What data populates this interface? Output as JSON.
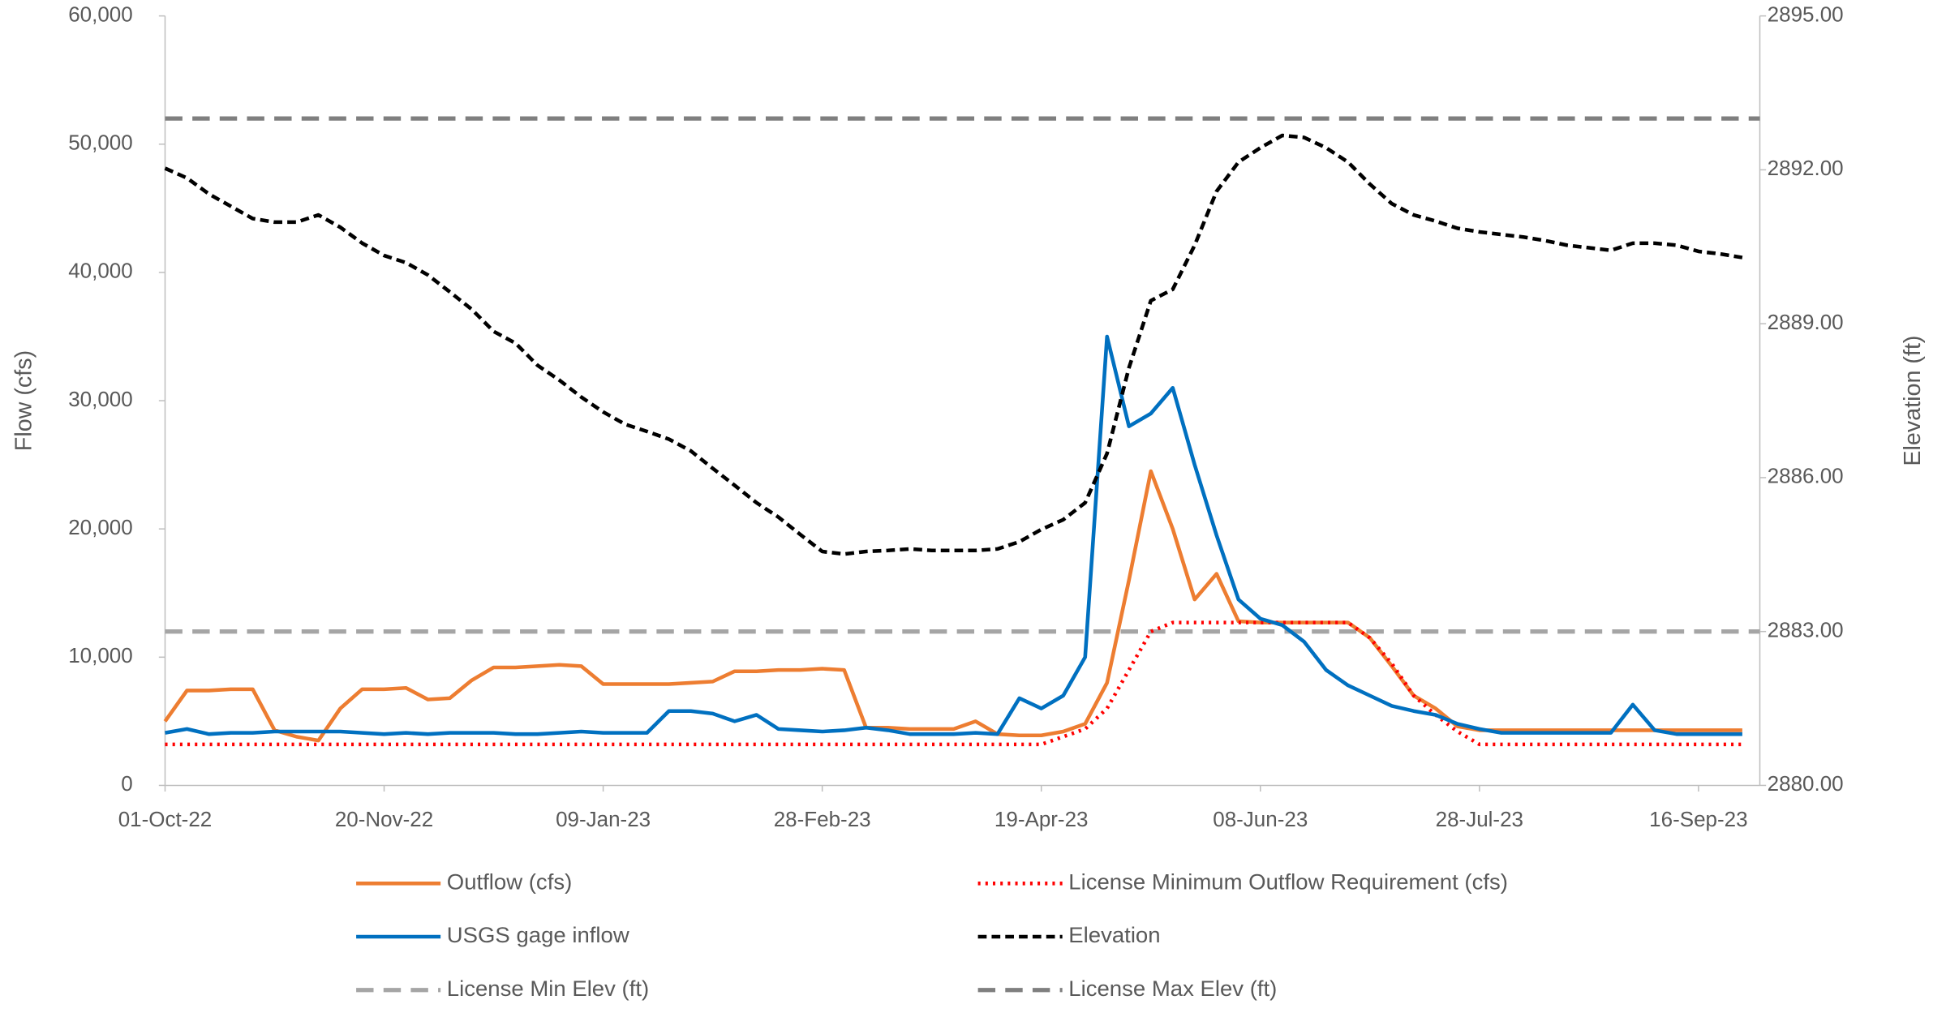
{
  "chart_data": {
    "type": "line",
    "ylabel": "Flow (cfs)",
    "y2label": "Elevation (ft)",
    "x": [
      "01-Oct-22",
      "06-Oct-22",
      "11-Oct-22",
      "16-Oct-22",
      "21-Oct-22",
      "26-Oct-22",
      "31-Oct-22",
      "05-Nov-22",
      "10-Nov-22",
      "15-Nov-22",
      "20-Nov-22",
      "25-Nov-22",
      "30-Nov-22",
      "05-Dec-22",
      "10-Dec-22",
      "15-Dec-22",
      "20-Dec-22",
      "25-Dec-22",
      "30-Dec-22",
      "04-Jan-23",
      "09-Jan-23",
      "14-Jan-23",
      "19-Jan-23",
      "24-Jan-23",
      "29-Jan-23",
      "03-Feb-23",
      "08-Feb-23",
      "13-Feb-23",
      "18-Feb-23",
      "23-Feb-23",
      "28-Feb-23",
      "05-Mar-23",
      "10-Mar-23",
      "15-Mar-23",
      "20-Mar-23",
      "25-Mar-23",
      "30-Mar-23",
      "04-Apr-23",
      "09-Apr-23",
      "14-Apr-23",
      "19-Apr-23",
      "24-Apr-23",
      "29-Apr-23",
      "04-May-23",
      "09-May-23",
      "14-May-23",
      "19-May-23",
      "24-May-23",
      "29-May-23",
      "03-Jun-23",
      "08-Jun-23",
      "13-Jun-23",
      "18-Jun-23",
      "23-Jun-23",
      "28-Jun-23",
      "03-Jul-23",
      "08-Jul-23",
      "13-Jul-23",
      "18-Jul-23",
      "23-Jul-23",
      "28-Jul-23",
      "02-Aug-23",
      "07-Aug-23",
      "12-Aug-23",
      "17-Aug-23",
      "22-Aug-23",
      "27-Aug-23",
      "01-Sep-23",
      "06-Sep-23",
      "11-Sep-23",
      "16-Sep-23",
      "21-Sep-23",
      "26-Sep-23"
    ],
    "xlim": [
      "01-Oct-22",
      "30-Sep-23"
    ],
    "xticks": [
      "01-Oct-22",
      "20-Nov-22",
      "09-Jan-23",
      "28-Feb-23",
      "19-Apr-23",
      "08-Jun-23",
      "28-Jul-23",
      "16-Sep-23"
    ],
    "ylim": [
      0,
      60000
    ],
    "yticks": [
      0,
      {
        "value": 10000,
        "label": "10,000"
      },
      {
        "value": 20000,
        "label": "20,000"
      },
      {
        "value": 30000,
        "label": "30,000"
      },
      {
        "value": 40000,
        "label": "40,000"
      },
      {
        "value": 50000,
        "label": "50,000"
      },
      {
        "value": 60000,
        "label": "60,000"
      }
    ],
    "y2lim": [
      2880,
      2895
    ],
    "y2ticks": [
      {
        "value": 2880,
        "label": "2880.00"
      },
      {
        "value": 2883,
        "label": "2883.00"
      },
      {
        "value": 2886,
        "label": "2886.00"
      },
      {
        "value": 2889,
        "label": "2889.00"
      },
      {
        "value": 2892,
        "label": "2892.00"
      },
      {
        "value": 2895,
        "label": "2895.00"
      }
    ],
    "series": [
      {
        "name": "Outflow (cfs)",
        "color": "#ed7d31",
        "style": "solid",
        "values": [
          5000,
          7400,
          7400,
          7500,
          7500,
          4300,
          3800,
          3500,
          6000,
          7500,
          7500,
          7600,
          6700,
          6800,
          8200,
          9200,
          9200,
          9300,
          9400,
          9300,
          7900,
          7900,
          7900,
          7900,
          8000,
          8100,
          8900,
          8900,
          9000,
          9000,
          9100,
          9000,
          4500,
          4500,
          4400,
          4400,
          4400,
          5000,
          4000,
          3900,
          3900,
          4200,
          4800,
          8000,
          16000,
          24500,
          20000,
          14500,
          16500,
          12800,
          12700,
          12700,
          12700,
          12700,
          12700,
          11500,
          9300,
          7000,
          6000,
          4600,
          4300,
          4300,
          4300,
          4300,
          4300,
          4300,
          4300,
          4300,
          4300,
          4300,
          4300,
          4300,
          4300
        ]
      },
      {
        "name": "License Minimum Outflow Requirement (cfs)",
        "color": "#ff0000",
        "style": "dotted",
        "values": [
          3200,
          3200,
          3200,
          3200,
          3200,
          3200,
          3200,
          3200,
          3200,
          3200,
          3200,
          3200,
          3200,
          3200,
          3200,
          3200,
          3200,
          3200,
          3200,
          3200,
          3200,
          3200,
          3200,
          3200,
          3200,
          3200,
          3200,
          3200,
          3200,
          3200,
          3200,
          3200,
          3200,
          3200,
          3200,
          3200,
          3200,
          3200,
          3200,
          3200,
          3200,
          3800,
          4400,
          6000,
          9000,
          12000,
          12700,
          12700,
          12700,
          12700,
          12700,
          12700,
          12700,
          12700,
          12700,
          11500,
          9500,
          7000,
          5500,
          4200,
          3200,
          3200,
          3200,
          3200,
          3200,
          3200,
          3200,
          3200,
          3200,
          3200,
          3200,
          3200,
          3200
        ]
      },
      {
        "name": "USGS gage inflow",
        "color": "#0070c0",
        "style": "solid",
        "values": [
          4100,
          4400,
          4000,
          4100,
          4100,
          4200,
          4200,
          4200,
          4200,
          4100,
          4000,
          4100,
          4000,
          4100,
          4100,
          4100,
          4000,
          4000,
          4100,
          4200,
          4100,
          4100,
          4100,
          5800,
          5800,
          5600,
          5000,
          5500,
          4400,
          4300,
          4200,
          4300,
          4500,
          4300,
          4000,
          4000,
          4000,
          4100,
          4000,
          6800,
          6000,
          7000,
          10000,
          35000,
          28000,
          29000,
          31000,
          25000,
          19500,
          14500,
          13000,
          12500,
          11200,
          9000,
          7800,
          7000,
          6200,
          5800,
          5500,
          4800,
          4400,
          4100,
          4100,
          4100,
          4100,
          4100,
          4100,
          6300,
          4300,
          4000,
          4000,
          4000,
          4000
        ]
      },
      {
        "name": "Elevation",
        "color": "#000000",
        "style": "dashed",
        "axis": "y2",
        "values": [
          2892.03,
          2891.84,
          2891.53,
          2891.29,
          2891.05,
          2890.98,
          2890.98,
          2891.12,
          2890.88,
          2890.57,
          2890.33,
          2890.19,
          2889.95,
          2889.62,
          2889.28,
          2888.85,
          2888.62,
          2888.19,
          2887.9,
          2887.57,
          2887.28,
          2887.04,
          2886.9,
          2886.75,
          2886.52,
          2886.18,
          2885.85,
          2885.51,
          2885.23,
          2884.89,
          2884.56,
          2884.51,
          2884.56,
          2884.58,
          2884.61,
          2884.58,
          2884.58,
          2884.58,
          2884.61,
          2884.75,
          2884.99,
          2885.18,
          2885.51,
          2886.47,
          2888.14,
          2889.45,
          2889.67,
          2890.53,
          2891.58,
          2892.15,
          2892.43,
          2892.67,
          2892.63,
          2892.43,
          2892.15,
          2891.72,
          2891.34,
          2891.12,
          2891,
          2890.86,
          2890.79,
          2890.74,
          2890.69,
          2890.62,
          2890.53,
          2890.48,
          2890.43,
          2890.57,
          2890.57,
          2890.53,
          2890.41,
          2890.36,
          2890.29
        ]
      }
    ],
    "reference_lines": [
      {
        "name": "License Min Elev (ft)",
        "color": "#a5a5a5",
        "style": "longdash",
        "axis": "y2",
        "value": 2883
      },
      {
        "name": "License Max Elev (ft)",
        "color": "#7f7f7f",
        "style": "longdash",
        "axis": "y2",
        "value": 2893
      }
    ]
  }
}
